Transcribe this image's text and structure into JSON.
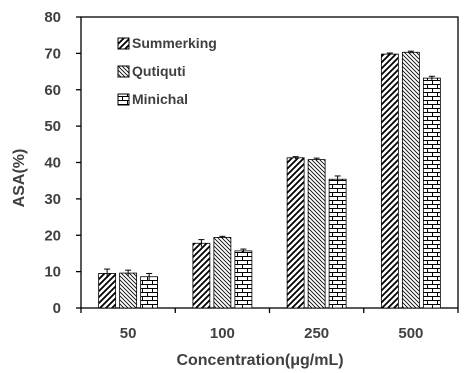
{
  "chart_data": {
    "type": "bar",
    "title": "",
    "xlabel": "Concentration(μg/mL)",
    "ylabel": "ASA(%)",
    "ylim": [
      0,
      80
    ],
    "yticks": [
      0,
      10,
      20,
      30,
      40,
      50,
      60,
      70,
      80
    ],
    "categories": [
      "50",
      "100",
      "250",
      "500"
    ],
    "grid": false,
    "legend_position": "top-left",
    "series": [
      {
        "name": "Summerking",
        "pattern": "diagonal",
        "values": [
          9.5,
          17.8,
          41.3,
          69.8
        ],
        "errors": [
          1.2,
          1.0,
          0.3,
          0.3
        ]
      },
      {
        "name": "Qutiquti",
        "pattern": "back-diagonal",
        "values": [
          9.6,
          19.4,
          40.8,
          70.3
        ],
        "errors": [
          0.8,
          0.3,
          0.4,
          0.3
        ]
      },
      {
        "name": "Minichal",
        "pattern": "brick",
        "values": [
          8.6,
          15.7,
          35.4,
          63.2
        ],
        "errors": [
          0.9,
          0.5,
          0.9,
          0.5
        ]
      }
    ]
  },
  "colors": {
    "axis": "#000000",
    "bar_stroke": "#000000",
    "fill": "#ffffff",
    "text": "#404040"
  }
}
